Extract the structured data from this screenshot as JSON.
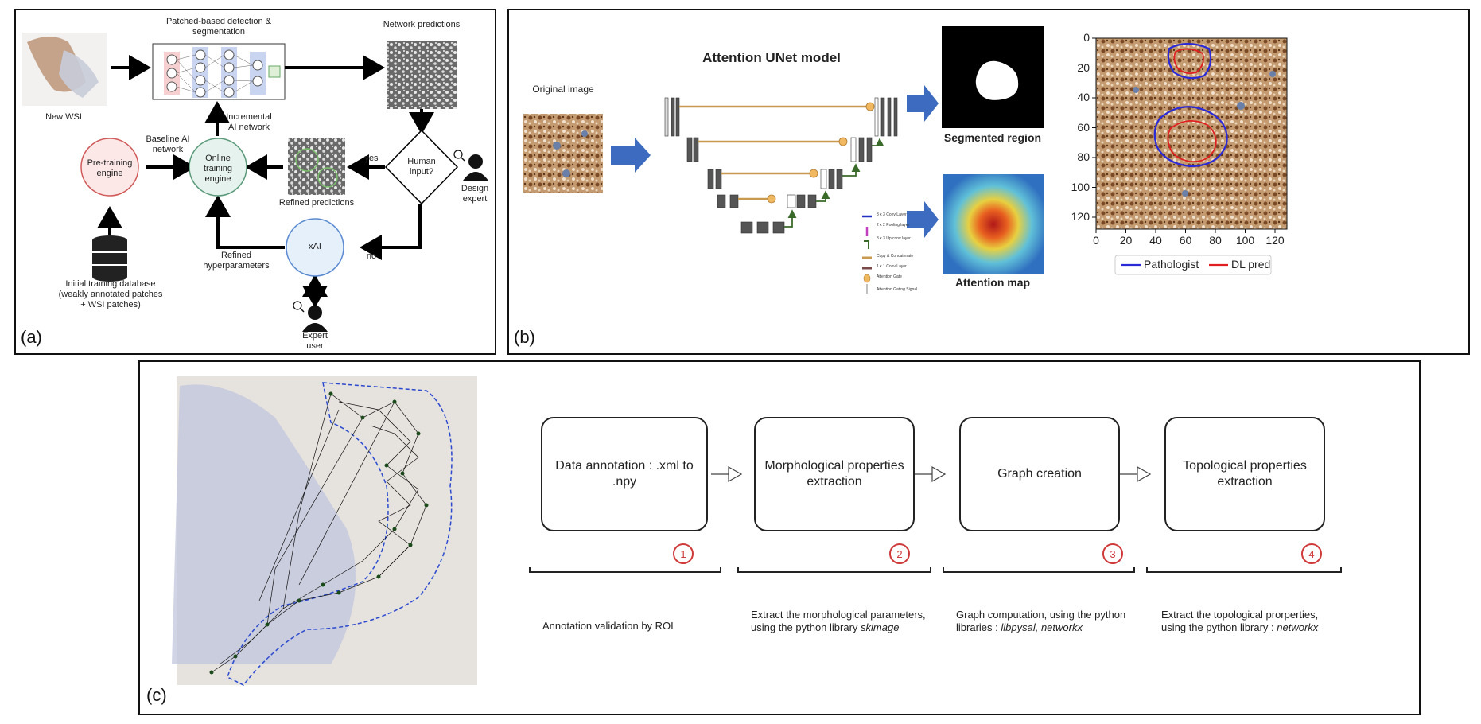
{
  "panel_a": {
    "tag": "(a)",
    "new_wsi": "New WSI",
    "detection_title": "Patched-based detection & segmentation",
    "network_predictions": "Network predictions",
    "incremental": "Incremental AI network",
    "baseline": "Baseline AI network",
    "pretraining": "Pre-training engine",
    "online": "Online training engine",
    "refined_predictions": "Refined predictions",
    "yes": "yes",
    "no": "no",
    "human_input": "Human input?",
    "design_expert": "Design expert",
    "xai": "xAI",
    "refined_hyper": "Refined hyperparameters",
    "initial_db": "Initial training database (weakly annotated patches + WSI patches)",
    "expert_user": "Expert user"
  },
  "panel_b": {
    "tag": "(b)",
    "original_image": "Original image",
    "model_title": "Attention UNet model",
    "segmented_region": "Segmented region",
    "attention_map": "Attention map",
    "legend_items": [
      "3 x 3 Conv Layer",
      "2 x 2 Pooling layer",
      "3 x 3 Up conv layer",
      "Copy & Concatenate",
      "1 x 1 Conv Layer",
      "Attention Gate",
      "Attention Gating Signal"
    ],
    "plot": {
      "y_ticks": [
        "0",
        "20",
        "40",
        "60",
        "80",
        "100",
        "120"
      ],
      "x_ticks": [
        "0",
        "20",
        "40",
        "60",
        "80",
        "100",
        "120"
      ],
      "legend": [
        {
          "name": "Pathologist",
          "color": "#2a2ad8"
        },
        {
          "name": "DL pred",
          "color": "#e02020"
        }
      ]
    }
  },
  "panel_c": {
    "tag": "(c)",
    "steps": [
      {
        "title": "Data annotation : .xml to .npy",
        "num": "1",
        "desc": "Annotation validation by ROI"
      },
      {
        "title": "Morphological properties extraction",
        "num": "2",
        "desc_pre": "Extract the morphological parameters, using the python library ",
        "desc_em": "skimage"
      },
      {
        "title": "Graph creation",
        "num": "3",
        "desc_pre": "Graph computation, using the python libraries : ",
        "desc_em": "libpysal, networkx"
      },
      {
        "title": "Topological properties extraction",
        "num": "4",
        "desc_pre": "Extract the topological prorperties, using the python library : ",
        "desc_em": "networkx"
      }
    ]
  }
}
